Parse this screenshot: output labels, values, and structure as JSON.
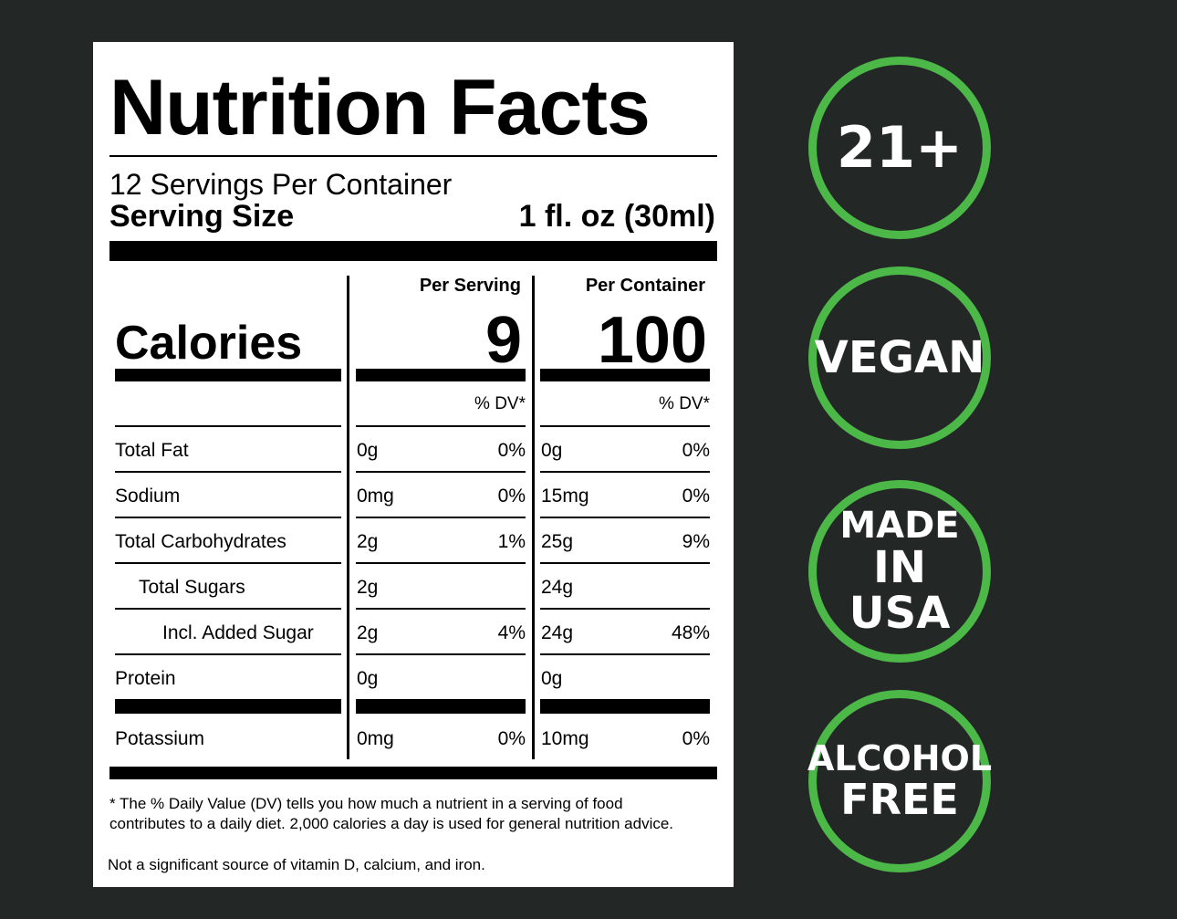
{
  "label": {
    "title": "Nutrition Facts",
    "servings_per_container": "12 Servings Per Container",
    "serving_size_label": "Serving Size",
    "serving_size_value": "1 fl. oz (30ml)",
    "per_serving_header": "Per Serving",
    "per_container_header": "Per Container",
    "calories_label": "Calories",
    "calories_per_serving": "9",
    "calories_per_container": "100",
    "dv_header": "% DV*",
    "rows": [
      {
        "name": "Total Fat",
        "s_amt": "0g",
        "s_dv": "0%",
        "c_amt": "0g",
        "c_dv": "0%"
      },
      {
        "name": "Sodium",
        "s_amt": "0mg",
        "s_dv": "0%",
        "c_amt": "15mg",
        "c_dv": "0%"
      },
      {
        "name": "Total Carbohydrates",
        "s_amt": "2g",
        "s_dv": "1%",
        "c_amt": "25g",
        "c_dv": "9%"
      },
      {
        "name": "Total Sugars",
        "s_amt": "2g",
        "s_dv": "",
        "c_amt": "24g",
        "c_dv": ""
      },
      {
        "name": "Incl. Added Sugar",
        "s_amt": "2g",
        "s_dv": "4%",
        "c_amt": "24g",
        "c_dv": "48%"
      },
      {
        "name": "Protein",
        "s_amt": "0g",
        "s_dv": "",
        "c_amt": "0g",
        "c_dv": ""
      },
      {
        "name": "Potassium",
        "s_amt": "0mg",
        "s_dv": "0%",
        "c_amt": "10mg",
        "c_dv": "0%"
      }
    ],
    "footnote": "* The % Daily Value (DV) tells you how much a nutrient in a serving of food contributes to a daily diet. 2,000 calories a day is used for general nutrition advice.",
    "footnote2": "Not a significant source of vitamin D, calcium, and iron."
  },
  "badges": [
    {
      "lines": [
        "21+"
      ]
    },
    {
      "lines": [
        "VEGAN"
      ]
    },
    {
      "lines": [
        "MADE",
        "IN USA"
      ]
    },
    {
      "lines": [
        "ALCOHOL",
        "FREE"
      ]
    }
  ],
  "colors": {
    "badge_ring": "#4cb848",
    "background": "#232827"
  }
}
